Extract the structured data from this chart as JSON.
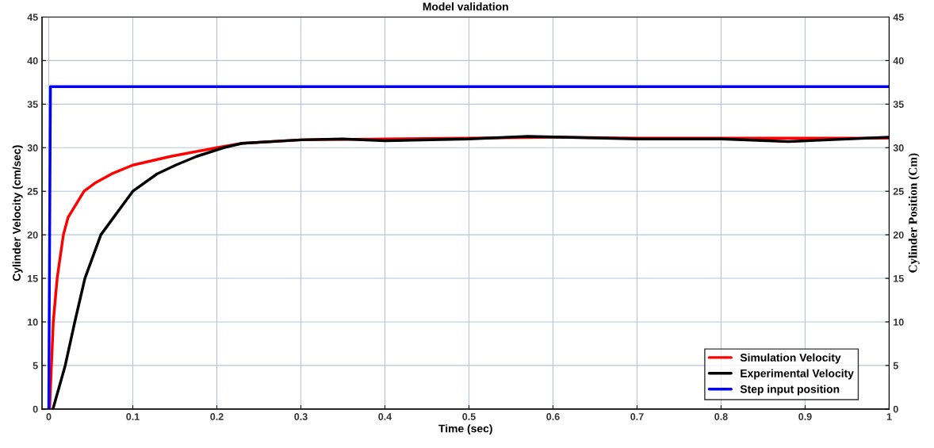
{
  "chart_data": {
    "type": "line",
    "title": "Model validation",
    "xlabel": "Time (sec)",
    "ylabel": "Cylinder Velocity (cm/sec)",
    "y2label": "Cylinder Position (Cm)",
    "xlim": [
      -0.008,
      1
    ],
    "xticks": [
      0,
      0.1,
      0.2,
      0.3,
      0.4,
      0.5,
      0.6,
      0.7,
      0.8,
      0.9,
      1
    ],
    "ylim": [
      0,
      45
    ],
    "yticks": [
      0,
      5,
      10,
      15,
      20,
      25,
      30,
      35,
      40,
      45
    ],
    "y2lim": [
      0,
      45
    ],
    "y2ticks": [
      0,
      5,
      10,
      15,
      20,
      25,
      30,
      35,
      40,
      45
    ],
    "grid": true,
    "legend": "bottom right",
    "line_style": "solid",
    "marker": "none",
    "series": [
      {
        "name": "Simulation Velocity",
        "color": "#ff0000",
        "x": [
          0.001,
          0.0054,
          0.01,
          0.0174,
          0.023,
          0.042,
          0.056,
          0.075,
          0.1,
          0.145,
          0.2,
          0.23,
          0.3,
          0.4,
          0.5,
          0.6,
          0.7,
          0.8,
          0.9,
          1.0
        ],
        "values": [
          0,
          10,
          15,
          20,
          22,
          25,
          26,
          27,
          28,
          29,
          30,
          30.5,
          30.9,
          31.0,
          31.1,
          31.2,
          31.1,
          31.1,
          31.1,
          31.1
        ]
      },
      {
        "name": "Experimental Velocity",
        "color": "#000000",
        "x": [
          0.005,
          0.0196,
          0.031,
          0.043,
          0.062,
          0.1,
          0.129,
          0.151,
          0.176,
          0.208,
          0.23,
          0.3,
          0.35,
          0.4,
          0.5,
          0.57,
          0.7,
          0.8,
          0.88,
          1.0
        ],
        "values": [
          0,
          5,
          10,
          15,
          20,
          25,
          27,
          28,
          29,
          30,
          30.5,
          30.9,
          31.0,
          30.8,
          31.0,
          31.3,
          31.0,
          31.0,
          30.7,
          31.2
        ]
      },
      {
        "name": "Step input position",
        "color": "#0000ff",
        "axis": "y2",
        "x": [
          0,
          0.002,
          0.5,
          1.0
        ],
        "values": [
          0,
          37,
          37,
          37
        ]
      }
    ]
  }
}
